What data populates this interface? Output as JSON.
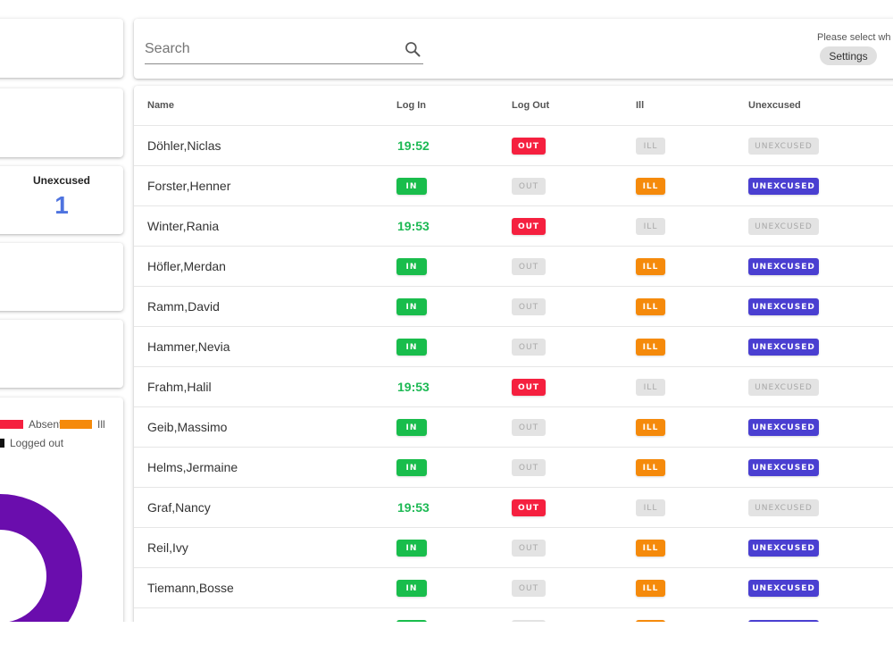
{
  "summary": {
    "unexcused_label": "Unexcused",
    "unexcused_value": "1"
  },
  "legend": {
    "absent": "Absent",
    "ill": "Ill",
    "logged_out": "Logged out",
    "colors": {
      "absent": "#f5203f",
      "ill": "#f58a0b",
      "logged_out": "#111111",
      "present": "#6a0dad"
    }
  },
  "search": {
    "placeholder": "Search",
    "value": ""
  },
  "settings": {
    "hint": "Please select wh",
    "button_label": "Settings"
  },
  "table": {
    "headers": {
      "name": "Name",
      "login": "Log In",
      "logout": "Log Out",
      "ill": "Ill",
      "unexcused": "Unexcused"
    },
    "badge_labels": {
      "in": "IN",
      "out": "OUT",
      "ill": "ILL",
      "unexcused": "UNEXCUSED"
    },
    "rows": [
      {
        "name": "Döhler,Niclas",
        "login_time": "19:52"
      },
      {
        "name": "Forster,Henner",
        "login_time": ""
      },
      {
        "name": "Winter,Rania",
        "login_time": "19:53"
      },
      {
        "name": "Höfler,Merdan",
        "login_time": ""
      },
      {
        "name": "Ramm,David",
        "login_time": ""
      },
      {
        "name": "Hammer,Nevia",
        "login_time": ""
      },
      {
        "name": "Frahm,Halil",
        "login_time": "19:53"
      },
      {
        "name": "Geib,Massimo",
        "login_time": ""
      },
      {
        "name": "Helms,Jermaine",
        "login_time": ""
      },
      {
        "name": "Graf,Nancy",
        "login_time": "19:53"
      },
      {
        "name": "Reil,Ivy",
        "login_time": ""
      },
      {
        "name": "Tiemann,Bosse",
        "login_time": ""
      }
    ]
  }
}
